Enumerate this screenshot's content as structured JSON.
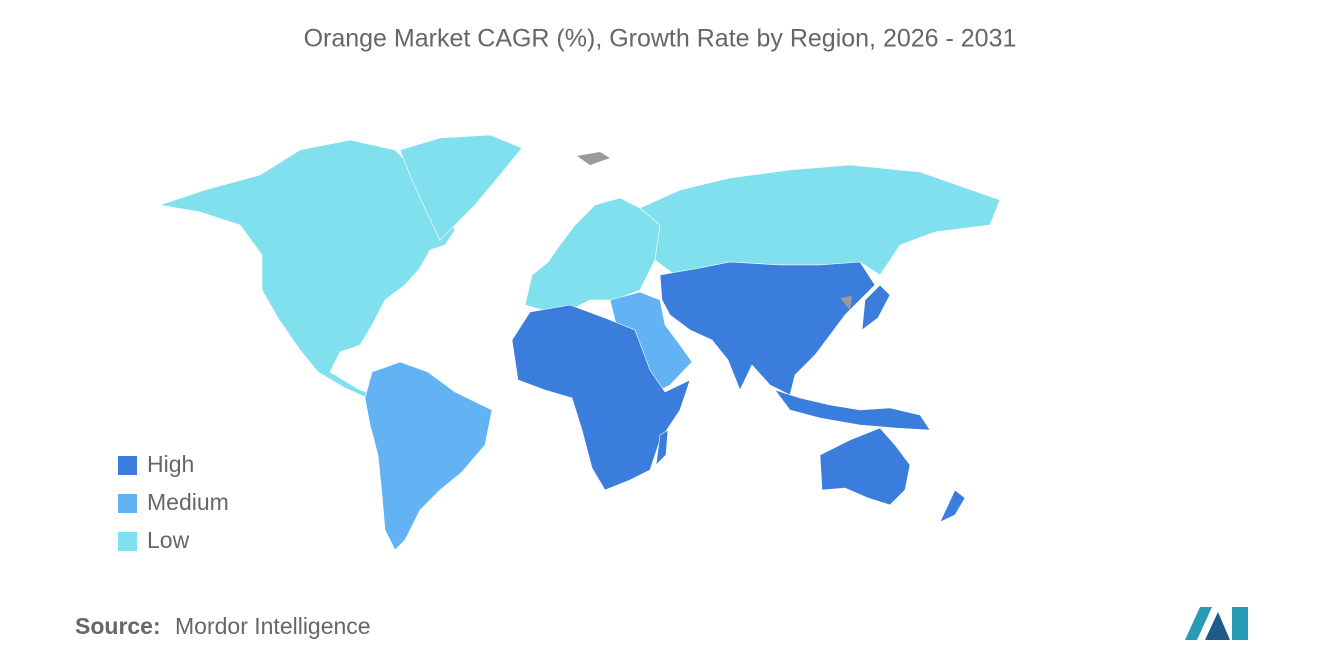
{
  "title": "Orange Market CAGR (%), Growth Rate by Region, 2026 - 2031",
  "legend": {
    "items": [
      {
        "label": "High",
        "color": "#3b7ddc"
      },
      {
        "label": "Medium",
        "color": "#63b2f3"
      },
      {
        "label": "Low",
        "color": "#80e0ee"
      }
    ]
  },
  "source": {
    "label": "Source:",
    "text": "Mordor Intelligence"
  }
}
